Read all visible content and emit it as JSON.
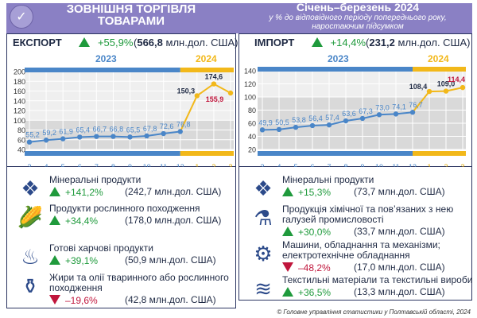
{
  "header": {
    "title_line1": "ЗОВНІШНЯ ТОРГІВЛЯ",
    "title_line2": "ТОВАРАМИ",
    "period": "Січень–березень 2024",
    "subtitle_line1": "у % до відповідного періоду попереднього року,",
    "subtitle_line2": "наростаючим підсумком",
    "logo_icon": "globe-icon"
  },
  "export": {
    "label": "ЕКСПОРТ",
    "change": "+55,9%",
    "amount_value": "566,8",
    "amount_unit": "млн.дол. США",
    "year_2023": "2023",
    "year_2024": "2024",
    "items": [
      {
        "name": "Мінеральні продукти",
        "change": "+141,2%",
        "direction": "up",
        "amount": "(242,7 млн.дол. США)",
        "icon": "crystals-icon"
      },
      {
        "name": "Продукти рослинного походження",
        "change": "+34,4%",
        "direction": "up",
        "amount": "(178,0 млн.дол. США)",
        "icon": "corn-icon"
      },
      {
        "name": "Готові харчові продукти",
        "change": "+39,1%",
        "direction": "up",
        "amount": "(50,9 млн.дол. США)",
        "icon": "food-basket-icon"
      },
      {
        "name": "Жири та олії тваринного або рослинного походження",
        "change": "–19,6%",
        "direction": "down",
        "amount": "(42,8 млн.дол. США)",
        "icon": "oil-bottle-icon"
      }
    ]
  },
  "import": {
    "label": "ІМПОРТ",
    "change": "+14,4%",
    "amount_value": "231,2",
    "amount_unit": "млн.дол. США",
    "year_2023": "2023",
    "year_2024": "2024",
    "items": [
      {
        "name": "Мінеральні продукти",
        "change": "+15,3%",
        "direction": "up",
        "amount": "(73,7 млн.дол. США)",
        "icon": "crystals-icon"
      },
      {
        "name": "Продукція хімічної та пов’язаних з нею галузей промисловості",
        "change": "+30,0%",
        "direction": "up",
        "amount": "(33,7 млн.дол. США)",
        "icon": "chemistry-flask-icon"
      },
      {
        "name": "Машини, обладнання та механізми; електротехнічне обладнання",
        "change": "–48,2%",
        "direction": "down",
        "amount": "(17,0 млн.дол. США)",
        "icon": "machine-gear-icon"
      },
      {
        "name": "Текстильні матеріали та текстильні вироби",
        "change": "+36,5%",
        "direction": "up",
        "amount": "(13,3 млн.дол. США)",
        "icon": "fabric-rolls-icon"
      }
    ]
  },
  "credit": "© Головне управління статистики у Полтавській області, 2024",
  "colors": {
    "header": "#8a80c4",
    "series_2023": "#4a86c8",
    "series_2024": "#f2b81a",
    "up": "#1f9a3c",
    "down": "#c0163c"
  },
  "chart_data": [
    {
      "type": "line",
      "name": "export",
      "x": [
        "3",
        "4",
        "5",
        "6",
        "7",
        "8",
        "9",
        "10",
        "11",
        "12",
        "1",
        "2",
        "3"
      ],
      "values": [
        55.2,
        59.2,
        61.9,
        65.4,
        66.7,
        66.8,
        65.5,
        67.8,
        72.6,
        76.8,
        150.3,
        174.6,
        155.9
      ],
      "labels": [
        "55,2",
        "59,2",
        "61,9",
        "65,4",
        "66,7",
        "66,8",
        "65,5",
        "67,8",
        "72,6",
        "76,8",
        "150,3",
        "174,6",
        "155,9"
      ],
      "yticks": [
        40,
        60,
        80,
        100,
        120,
        140,
        160,
        180,
        200
      ],
      "ylim": [
        40,
        200
      ],
      "reference_line": 100,
      "split_index": 10,
      "grid": true
    },
    {
      "type": "line",
      "name": "import",
      "x": [
        "3",
        "4",
        "5",
        "6",
        "7",
        "8",
        "9",
        "10",
        "11",
        "12",
        "1",
        "2",
        "3"
      ],
      "values": [
        49.9,
        50.5,
        53.8,
        56.4,
        57.4,
        63.6,
        67.3,
        73.0,
        74.1,
        76.7,
        108.4,
        109.0,
        114.4
      ],
      "labels": [
        "49,9",
        "50,5",
        "53,8",
        "56,4",
        "57,4",
        "63,6",
        "67,3",
        "73,0",
        "74,1",
        "76,7",
        "108,4",
        "109,0",
        "114,4"
      ],
      "yticks": [
        20,
        40,
        60,
        80,
        100,
        120,
        140
      ],
      "ylim": [
        20,
        140
      ],
      "reference_line": 100,
      "split_index": 10,
      "grid": true
    }
  ]
}
